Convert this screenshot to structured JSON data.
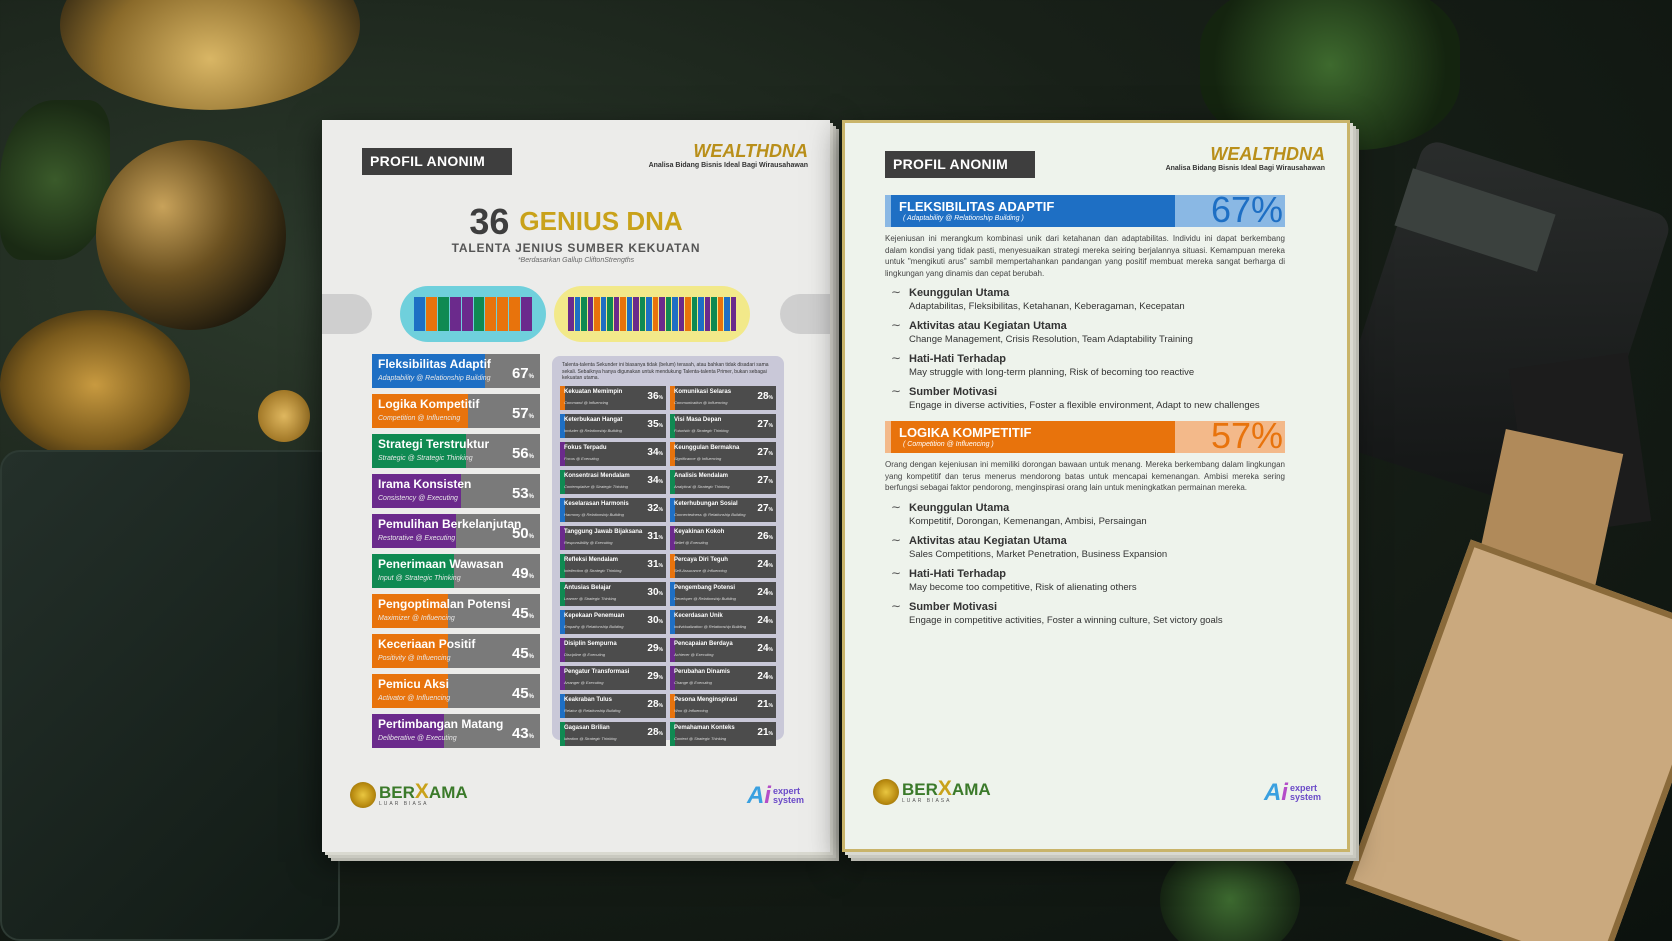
{
  "left_page": {
    "header": "PROFIL ANONIM",
    "brand": {
      "wealth": "WEALTH",
      "dna": "DNA",
      "subtitle": "Analisa Bidang Bisnis Ideal Bagi Wirausahawan"
    },
    "title_number": "36",
    "title_text": "GENIUS DNA",
    "subtitle": "TALENTA JENIUS SUMBER KEKUATAN",
    "note": "*Berdasarkan Gallup CliftonStrengths",
    "dna_colors_1": [
      "#1e6fc4",
      "#e8730c",
      "#0f8a52",
      "#6b2a8c",
      "#6b2a8c",
      "#0f8a52",
      "#e8730c",
      "#e8730c",
      "#e8730c",
      "#6b2a8c"
    ],
    "dna_colors_2": [
      "#6b2a8c",
      "#1e6fc4",
      "#0f8a52",
      "#6b2a8c",
      "#e8730c",
      "#1e6fc4",
      "#0f8a52",
      "#6b2a8c",
      "#e8730c",
      "#1e6fc4",
      "#6b2a8c",
      "#0f8a52",
      "#1e6fc4",
      "#e8730c",
      "#6b2a8c",
      "#0f8a52",
      "#1e6fc4",
      "#6b2a8c",
      "#e8730c",
      "#0f8a52",
      "#1e6fc4",
      "#6b2a8c",
      "#0f8a52",
      "#e8730c",
      "#1e6fc4",
      "#6b2a8c"
    ],
    "primary": [
      {
        "name": "Fleksibilitas Adaptif",
        "sub": "Adaptability @ Relationship Building",
        "pct": "67",
        "value": 67,
        "color": "#1e6fc4"
      },
      {
        "name": "Logika Kompetitif",
        "sub": "Competition @ Influencing",
        "pct": "57",
        "value": 57,
        "color": "#e8730c"
      },
      {
        "name": "Strategi Terstruktur",
        "sub": "Strategic @ Strategic Thinking",
        "pct": "56",
        "value": 56,
        "color": "#0f8a52"
      },
      {
        "name": "Irama Konsisten",
        "sub": "Consistency @ Executing",
        "pct": "53",
        "value": 53,
        "color": "#6b2a8c"
      },
      {
        "name": "Pemulihan Berkelanjutan",
        "sub": "Restorative @ Executing",
        "pct": "50",
        "value": 50,
        "color": "#6b2a8c"
      },
      {
        "name": "Penerimaan Wawasan",
        "sub": "Input @ Strategic Thinking",
        "pct": "49",
        "value": 49,
        "color": "#0f8a52"
      },
      {
        "name": "Pengoptimalan Potensi",
        "sub": "Maximizer @ Influencing",
        "pct": "45",
        "value": 45,
        "color": "#e8730c"
      },
      {
        "name": "Keceriaan Positif",
        "sub": "Positivity @ Influencing",
        "pct": "45",
        "value": 45,
        "color": "#e8730c"
      },
      {
        "name": "Pemicu Aksi",
        "sub": "Activator @ Influencing",
        "pct": "45",
        "value": 45,
        "color": "#e8730c"
      },
      {
        "name": "Pertimbangan Matang",
        "sub": "Deliberative @ Executing",
        "pct": "43",
        "value": 43,
        "color": "#6b2a8c"
      }
    ],
    "secondary_note": "Talenta-talenta Sekunder ini biasanya tidak (belum) terasah, atau bahkan tidak disadari sama sekali. Sebaiknya hanya digunakan untuk mendukung Talenta-talenta Primer, bukan sebagai kekuatan utama.",
    "secondary": [
      {
        "name": "Kekuatan Memimpin",
        "sub": "Command @ Influencing",
        "pct": "36",
        "value": 36,
        "color": "#e8730c"
      },
      {
        "name": "Komunikasi Selaras",
        "sub": "Communication @ Influencing",
        "pct": "28",
        "value": 28,
        "color": "#e8730c"
      },
      {
        "name": "Keterbukaan Hangat",
        "sub": "Includer @ Relationship Building",
        "pct": "35",
        "value": 35,
        "color": "#1e6fc4"
      },
      {
        "name": "Visi Masa Depan",
        "sub": "Futuristic @ Strategic Thinking",
        "pct": "27",
        "value": 27,
        "color": "#0f8a52"
      },
      {
        "name": "Fokus Terpadu",
        "sub": "Focus @ Executing",
        "pct": "34",
        "value": 34,
        "color": "#6b2a8c"
      },
      {
        "name": "Keunggulan Bermakna",
        "sub": "Significance @ Influencing",
        "pct": "27",
        "value": 27,
        "color": "#e8730c"
      },
      {
        "name": "Konsentrasi Mendalam",
        "sub": "Contemplative @ Strategic Thinking",
        "pct": "34",
        "value": 34,
        "color": "#0f8a52"
      },
      {
        "name": "Analisis Mendalam",
        "sub": "Analytical @ Strategic Thinking",
        "pct": "27",
        "value": 27,
        "color": "#0f8a52"
      },
      {
        "name": "Keselarasan Harmonis",
        "sub": "Harmony @ Relationship Building",
        "pct": "32",
        "value": 32,
        "color": "#1e6fc4"
      },
      {
        "name": "Keterhubungan Sosial",
        "sub": "Connectedness @ Relationship Building",
        "pct": "27",
        "value": 27,
        "color": "#1e6fc4"
      },
      {
        "name": "Tanggung Jawab Bijaksana",
        "sub": "Responsibility @ Executing",
        "pct": "31",
        "value": 31,
        "color": "#6b2a8c"
      },
      {
        "name": "Keyakinan Kokoh",
        "sub": "Belief @ Executing",
        "pct": "26",
        "value": 26,
        "color": "#6b2a8c"
      },
      {
        "name": "Refleksi Mendalam",
        "sub": "Intellection @ Strategic Thinking",
        "pct": "31",
        "value": 31,
        "color": "#0f8a52"
      },
      {
        "name": "Percaya Diri Teguh",
        "sub": "Self-Assurance @ Influencing",
        "pct": "24",
        "value": 24,
        "color": "#e8730c"
      },
      {
        "name": "Antusias Belajar",
        "sub": "Learner @ Strategic Thinking",
        "pct": "30",
        "value": 30,
        "color": "#0f8a52"
      },
      {
        "name": "Pengembang Potensi",
        "sub": "Developer @ Relationship Building",
        "pct": "24",
        "value": 24,
        "color": "#1e6fc4"
      },
      {
        "name": "Kepekaan Penemuan",
        "sub": "Empathy @ Relationship Building",
        "pct": "30",
        "value": 30,
        "color": "#1e6fc4"
      },
      {
        "name": "Kecerdasan Unik",
        "sub": "Individualization @ Relationship Building",
        "pct": "24",
        "value": 24,
        "color": "#1e6fc4"
      },
      {
        "name": "Disiplin Sempurna",
        "sub": "Discipline @ Executing",
        "pct": "29",
        "value": 29,
        "color": "#6b2a8c"
      },
      {
        "name": "Pencapaian Berdaya",
        "sub": "Achiever @ Executing",
        "pct": "24",
        "value": 24,
        "color": "#6b2a8c"
      },
      {
        "name": "Pengatur Transformasi",
        "sub": "Arranger @ Executing",
        "pct": "29",
        "value": 29,
        "color": "#6b2a8c"
      },
      {
        "name": "Perubahan Dinamis",
        "sub": "Change @ Executing",
        "pct": "24",
        "value": 24,
        "color": "#6b2a8c"
      },
      {
        "name": "Keakraban Tulus",
        "sub": "Relator @ Relationship Building",
        "pct": "28",
        "value": 28,
        "color": "#1e6fc4"
      },
      {
        "name": "Pesona Menginspirasi",
        "sub": "Woo @ Influencing",
        "pct": "21",
        "value": 21,
        "color": "#e8730c"
      },
      {
        "name": "Gagasan Brilian",
        "sub": "Ideation @ Strategic Thinking",
        "pct": "28",
        "value": 28,
        "color": "#0f8a52"
      },
      {
        "name": "Pemahaman Konteks",
        "sub": "Context @ Strategic Thinking",
        "pct": "21",
        "value": 21,
        "color": "#0f8a52"
      }
    ],
    "footer": {
      "berxama_1": "BER",
      "berxama_x": "X",
      "berxama_2": "AMA",
      "tagline": "LUAR BIASA",
      "ai_a": "A",
      "ai_i": "i",
      "expert": "expert",
      "system": "system"
    }
  },
  "right_page": {
    "header": "PROFIL ANONIM",
    "brand": {
      "wealth": "WEALTH",
      "dna": "DNA",
      "subtitle": "Analisa Bidang Bisnis Ideal Bagi Wirausahawan"
    },
    "sections": [
      {
        "title": "FLEKSIBILITAS ADAPTIF",
        "sub": "( Adaptability @ Relationship Building )",
        "pct": "67%",
        "color": "#1e6fc4",
        "light": "#8ab8e4",
        "desc": "Kejeniusan ini merangkum kombinasi unik dari ketahanan dan adaptabilitas. Individu ini dapat berkembang dalam kondisi yang tidak pasti, menyesuaikan strategi mereka seiring berjalannya situasi. Kemampuan mereka untuk \"mengikuti arus\" sambil mempertahankan pandangan yang positif membuat mereka sangat berharga di lingkungan yang dinamis dan cepat berubah.",
        "items": [
          {
            "title": "Keunggulan Utama",
            "text": "Adaptabilitas, Fleksibilitas, Ketahanan, Keberagaman, Kecepatan"
          },
          {
            "title": "Aktivitas atau Kegiatan Utama",
            "text": "Change Management, Crisis Resolution, Team Adaptability Training"
          },
          {
            "title": "Hati-Hati Terhadap",
            "text": "May struggle with long-term planning, Risk of becoming too reactive"
          },
          {
            "title": "Sumber Motivasi",
            "text": "Engage in diverse activities, Foster a flexible environment, Adapt to new challenges"
          }
        ]
      },
      {
        "title": "LOGIKA KOMPETITIF",
        "sub": "( Competition @ Influencing )",
        "pct": "57%",
        "color": "#e8730c",
        "light": "#f3b98a",
        "desc": "Orang dengan kejeniusan ini memiliki dorongan bawaan untuk menang. Mereka berkembang dalam lingkungan yang kompetitif dan terus menerus mendorong batas untuk mencapai kemenangan. Ambisi mereka sering berfungsi sebagai faktor pendorong, menginspirasi orang lain untuk meningkatkan permainan mereka.",
        "items": [
          {
            "title": "Keunggulan Utama",
            "text": "Kompetitif, Dorongan, Kemenangan, Ambisi, Persaingan"
          },
          {
            "title": "Aktivitas atau Kegiatan Utama",
            "text": "Sales Competitions, Market Penetration, Business Expansion"
          },
          {
            "title": "Hati-Hati Terhadap",
            "text": "May become too competitive, Risk of alienating others"
          },
          {
            "title": "Sumber Motivasi",
            "text": "Engage in competitive activities, Foster a winning culture, Set victory goals"
          }
        ]
      }
    ],
    "footer": {
      "berxama_1": "BER",
      "berxama_x": "X",
      "berxama_2": "AMA",
      "tagline": "LUAR BIASA",
      "ai_a": "A",
      "ai_i": "i",
      "expert": "expert",
      "system": "system"
    }
  }
}
